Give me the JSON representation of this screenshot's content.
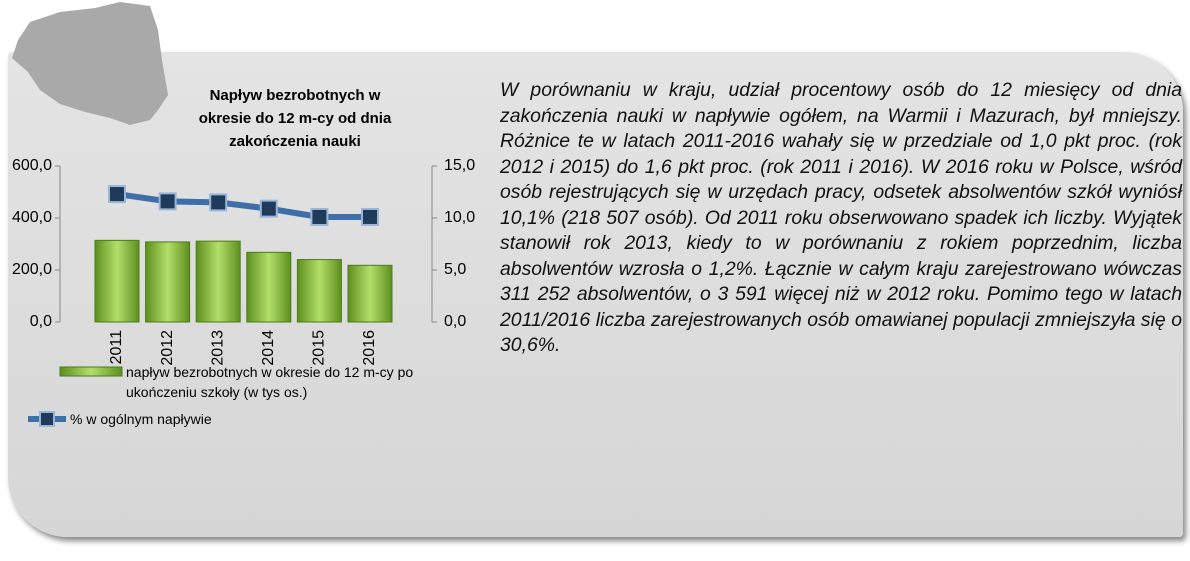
{
  "chart_data": {
    "type": "bar_line",
    "title": "Napływ bezrobotnych w okresie do 12 m-cy od dnia zakończenia nauki",
    "categories": [
      "2011",
      "2012",
      "2013",
      "2014",
      "2015",
      "2016"
    ],
    "series": [
      {
        "name": "napływ  bezrobotnych w okresie do 12 m-cy po ukończeniu szkoły (w tys os.)",
        "color": "#8cbf3f",
        "type": "bar",
        "values": [
          314,
          308,
          311,
          268,
          240,
          218
        ]
      },
      {
        "name": "% w ogólnym napływie",
        "color": "#3e6fa8",
        "type": "line",
        "axis": "y2",
        "values": [
          12.3,
          11.6,
          11.5,
          10.9,
          10.1,
          10.1
        ]
      }
    ],
    "ylim": [
      0,
      600
    ],
    "yticks": [
      {
        "value": 0,
        "label": "0,0"
      },
      {
        "value": 200,
        "label": "200,0"
      },
      {
        "value": 400,
        "label": "400,0"
      },
      {
        "value": 600,
        "label": "600,0"
      }
    ],
    "y2lim": [
      0,
      15
    ],
    "y2ticks": [
      {
        "value": 0,
        "label": "0,0"
      },
      {
        "value": 5,
        "label": "5,0"
      },
      {
        "value": 10,
        "label": "10,0"
      },
      {
        "value": 15,
        "label": "15,0"
      }
    ]
  },
  "paragraph": "W porównaniu w kraju, udział procentowy osób do 12 miesięcy od dnia zakończenia nauki w napływie ogółem, na Warmii i Mazurach, był mniejszy. Różnice te w latach 2011-2016 wahały się w przedziale od 1,0 pkt proc. (rok 2012 i 2015) do 1,6 pkt proc. (rok 2011 i 2016). W 2016 roku w Polsce, wśród osób rejestrujących się w urzędach pracy, odsetek absolwentów szkół wyniósł 10,1% (218 507 osób). Od 2011 roku obserwowano spadek ich liczby. Wyjątek stanowił rok 2013, kiedy to w porównaniu z rokiem poprzednim, liczba absolwentów wzrosła o 1,2%. Łącznie w całym kraju zarejestrowano wówczas 311 252 absolwentów, o 3 591 więcej niż w 2012 roku. Pomimo tego w latach 2011/2016 liczba zarejestrowanych osób omawianej populacji zmniejszyła się o 30,6%."
}
